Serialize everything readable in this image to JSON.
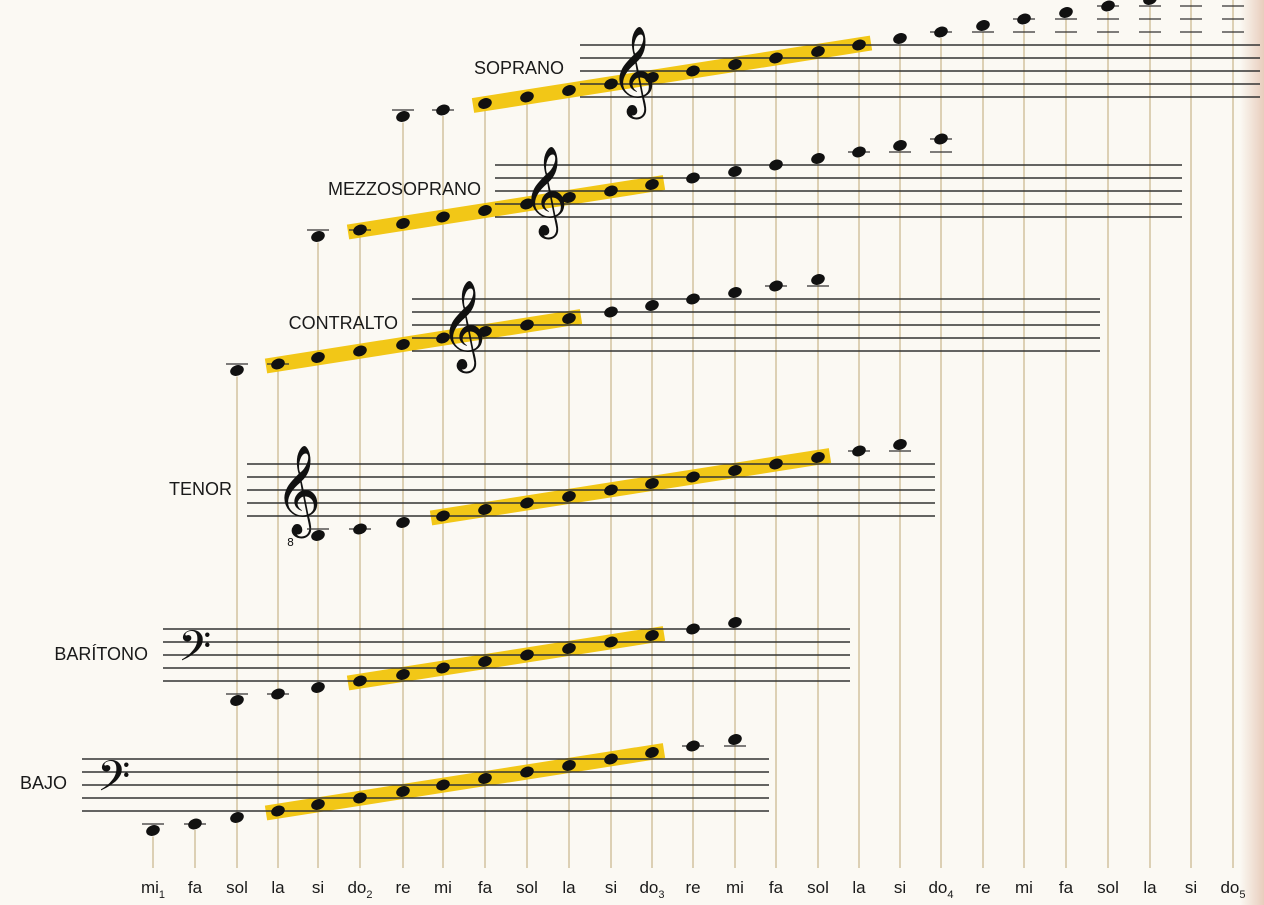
{
  "chart_data": {
    "type": "diagram",
    "title": "",
    "note_names": [
      {
        "name": "mi",
        "sub": "1"
      },
      {
        "name": "fa",
        "sub": ""
      },
      {
        "name": "sol",
        "sub": ""
      },
      {
        "name": "la",
        "sub": ""
      },
      {
        "name": "si",
        "sub": ""
      },
      {
        "name": "do",
        "sub": "2"
      },
      {
        "name": "re",
        "sub": ""
      },
      {
        "name": "mi",
        "sub": ""
      },
      {
        "name": "fa",
        "sub": ""
      },
      {
        "name": "sol",
        "sub": ""
      },
      {
        "name": "la",
        "sub": ""
      },
      {
        "name": "si",
        "sub": ""
      },
      {
        "name": "do",
        "sub": "3"
      },
      {
        "name": "re",
        "sub": ""
      },
      {
        "name": "mi",
        "sub": ""
      },
      {
        "name": "fa",
        "sub": ""
      },
      {
        "name": "sol",
        "sub": ""
      },
      {
        "name": "la",
        "sub": ""
      },
      {
        "name": "si",
        "sub": ""
      },
      {
        "name": "do",
        "sub": "4"
      },
      {
        "name": "re",
        "sub": ""
      },
      {
        "name": "mi",
        "sub": ""
      },
      {
        "name": "fa",
        "sub": ""
      },
      {
        "name": "sol",
        "sub": ""
      },
      {
        "name": "la",
        "sub": ""
      },
      {
        "name": "si",
        "sub": ""
      },
      {
        "name": "do",
        "sub": "5"
      }
    ],
    "voices": [
      {
        "label": "SOPRANO",
        "clef": "treble-clef",
        "range_start": "do3",
        "range_end": "do5",
        "highlight_start": "mi",
        "highlight_end": "sol"
      },
      {
        "label": "MEZZOSOPRANO",
        "clef": "treble-clef",
        "range_start": "la",
        "range_end": "la",
        "highlight_start": "do3",
        "highlight_end": "mi"
      },
      {
        "label": "CONTRALTO",
        "clef": "treble-clef",
        "range_start": "fa",
        "range_end": "fa",
        "highlight_start": "la",
        "highlight_end": "do4"
      },
      {
        "label": "TENOR",
        "clef": "treble-clef-8vb",
        "range_start": "si",
        "range_end": "si",
        "highlight_start": "mi",
        "highlight_end": "sol"
      },
      {
        "label": "BARÍTONO",
        "clef": "bass-clef",
        "range_start": "sol",
        "range_end": "sol",
        "highlight_start": "do2",
        "highlight_end": "mi"
      },
      {
        "label": "BAJO",
        "clef": "bass-clef",
        "range_start": "mi1",
        "range_end": "mi",
        "highlight_start": "la",
        "highlight_end": "do3"
      }
    ],
    "colors": {
      "highlight": "#f2c200",
      "note": "#111111",
      "staff": "#333333",
      "guide": "#c9b58a"
    }
  }
}
